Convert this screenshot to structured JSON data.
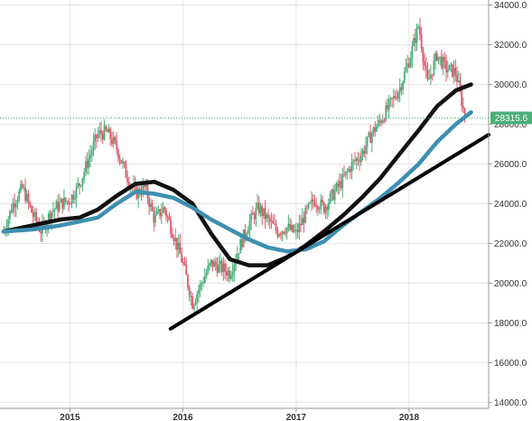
{
  "chart_data": {
    "type": "candlestick",
    "title": "",
    "xlabel": "",
    "ylabel": "",
    "x_ticks": [
      {
        "label": "2015",
        "date": "2015-01-01"
      },
      {
        "label": "2016",
        "date": "2016-01-01"
      },
      {
        "label": "2017",
        "date": "2017-01-01"
      },
      {
        "label": "2018",
        "date": "2018-01-01"
      }
    ],
    "y_ticks": [
      "14000.0",
      "16000.0",
      "18000.0",
      "20000.0",
      "22000.0",
      "24000.0",
      "26000.0",
      "28000.0",
      "30000.0",
      "32000.0",
      "34000.0"
    ],
    "y_tick_values": [
      14000,
      16000,
      18000,
      20000,
      22000,
      24000,
      26000,
      28000,
      30000,
      32000,
      34000
    ],
    "xlim": [
      "2014-05-20",
      "2018-09-15"
    ],
    "ylim": [
      13700,
      34250
    ],
    "grid": true,
    "last_price": {
      "label": "28315.6",
      "value": 28315.6,
      "color": "#4caf7a"
    },
    "series": [
      {
        "kind": "price",
        "up_color": "#4caf7a",
        "down_color": "#e05a6a",
        "x": [
          "2014-06-01",
          "2014-07-01",
          "2014-08-01",
          "2014-09-01",
          "2014-10-01",
          "2014-11-01",
          "2014-12-01",
          "2015-01-01",
          "2015-02-01",
          "2015-03-01",
          "2015-04-01",
          "2015-05-01",
          "2015-06-01",
          "2015-07-01",
          "2015-08-01",
          "2015-09-01",
          "2015-10-01",
          "2015-11-01",
          "2015-12-01",
          "2016-01-01",
          "2016-02-01",
          "2016-03-01",
          "2016-04-01",
          "2016-05-01",
          "2016-06-01",
          "2016-07-01",
          "2016-08-01",
          "2016-09-01",
          "2016-10-01",
          "2016-11-01",
          "2016-12-01",
          "2017-01-01",
          "2017-02-01",
          "2017-03-01",
          "2017-04-01",
          "2017-05-01",
          "2017-06-01",
          "2017-07-01",
          "2017-08-01",
          "2017-09-01",
          "2017-10-01",
          "2017-11-01",
          "2017-12-01",
          "2018-01-01",
          "2018-02-01",
          "2018-03-01",
          "2018-04-01",
          "2018-05-01",
          "2018-06-01",
          "2018-07-01"
        ],
        "y": [
          22600,
          24000,
          24800,
          23500,
          22600,
          23600,
          24000,
          24200,
          25000,
          26200,
          27500,
          27600,
          26800,
          25500,
          24500,
          24800,
          23200,
          23800,
          22500,
          21000,
          19000,
          20000,
          21000,
          20800,
          20500,
          21800,
          23000,
          23800,
          23200,
          22600,
          22800,
          22500,
          23500,
          24200,
          23800,
          24500,
          25200,
          26000,
          26500,
          27500,
          28200,
          29000,
          29800,
          31200,
          33000,
          30000,
          31500,
          30800,
          30600,
          28300
        ]
      },
      {
        "kind": "moving_average",
        "color": "#111111",
        "x": [
          "2014-06-01",
          "2014-09-01",
          "2014-12-01",
          "2015-02-01",
          "2015-04-01",
          "2015-06-01",
          "2015-08-01",
          "2015-10-01",
          "2015-12-01",
          "2016-02-01",
          "2016-04-01",
          "2016-06-01",
          "2016-08-01",
          "2016-10-01",
          "2016-12-01",
          "2017-02-01",
          "2017-04-01",
          "2017-06-01",
          "2017-08-01",
          "2017-10-01",
          "2017-12-01",
          "2018-02-01",
          "2018-04-01",
          "2018-06-01",
          "2018-07-20"
        ],
        "y": [
          22600,
          22900,
          23200,
          23300,
          23700,
          24400,
          25000,
          25100,
          24700,
          24000,
          22500,
          21200,
          20900,
          20900,
          21300,
          21900,
          22600,
          23400,
          24300,
          25300,
          26500,
          27700,
          28900,
          29700,
          30000
        ]
      },
      {
        "kind": "moving_average",
        "color": "#3e8fb0",
        "x": [
          "2014-06-01",
          "2014-09-01",
          "2014-12-01",
          "2015-02-01",
          "2015-04-01",
          "2015-06-01",
          "2015-08-01",
          "2015-10-01",
          "2015-12-01",
          "2016-02-01",
          "2016-04-01",
          "2016-06-01",
          "2016-08-01",
          "2016-10-01",
          "2016-12-01",
          "2017-02-01",
          "2017-04-01",
          "2017-06-01",
          "2017-08-01",
          "2017-10-01",
          "2017-12-01",
          "2018-02-01",
          "2018-04-01",
          "2018-06-01",
          "2018-07-20"
        ],
        "y": [
          22600,
          22700,
          22900,
          23100,
          23300,
          24000,
          24600,
          24500,
          24300,
          23800,
          23200,
          22700,
          22200,
          21800,
          21600,
          21700,
          22100,
          22900,
          23600,
          24300,
          25100,
          26000,
          27100,
          28000,
          28600
        ]
      },
      {
        "kind": "trendline",
        "color": "#000000",
        "x": [
          "2015-11-22",
          "2018-09-15"
        ],
        "y": [
          17700,
          27470
        ]
      }
    ]
  }
}
